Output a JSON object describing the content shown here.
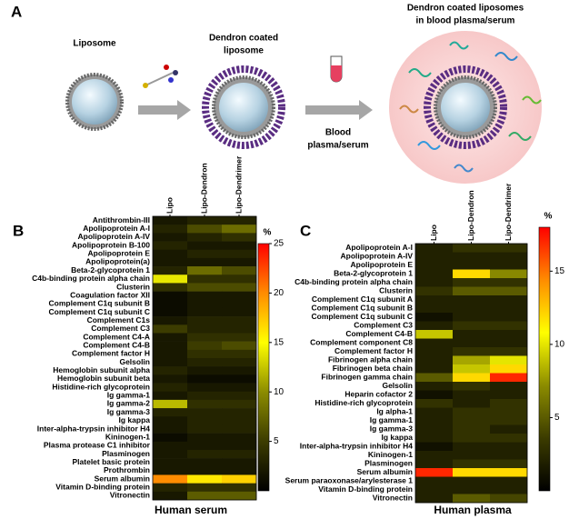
{
  "panel_a": {
    "letter": "A",
    "liposome": "Liposome",
    "coated": [
      "Dendron coated",
      "liposome"
    ],
    "blood": [
      "Blood",
      "plasma/serum"
    ],
    "final": [
      "Dendron coated liposomes",
      "in blood plasma/serum"
    ]
  },
  "chart_data": [
    {
      "type": "heatmap",
      "panel": "B",
      "xlabel": "Human serum",
      "colorbar_label": "%",
      "categories": [
        "Lipo",
        "Lipo-Dendron",
        "Lipo-Dendrimer"
      ],
      "rows": [
        "Antithrombin-III",
        "Apolipoprotein A-I",
        "Apolipoprotein A-IV",
        "Apolipoprotein B-100",
        "Apolipoprotein E",
        "Apolipoprotein(a)",
        "Beta-2-glycoprotein 1",
        "C4b-binding protein alpha chain",
        "Clusterin",
        "Coagulation factor XII",
        "Complement C1q subunit B",
        "Complement C1q subunit C",
        "Complement C1s",
        "Complement C3",
        "Complement C4-A",
        "Complement C4-B",
        "Complement factor H",
        "Gelsolin",
        "Hemoglobin subunit alpha",
        "Hemoglobin subunit beta",
        "Histidine-rich glycoprotein",
        "Ig gamma-1",
        "Ig gamma-2",
        "Ig gamma-3",
        "Ig kappa",
        "Inter-alpha-trypsin inhibitor H4",
        "Kininogen-1",
        "Plasma protease C1 inhibitor",
        "Plasminogen",
        "Platelet basic protein",
        "Prothrombin",
        "Serum albumin",
        "Vitamin D-binding protein",
        "Vitronectin"
      ],
      "values": [
        [
          2,
          3,
          3
        ],
        [
          3,
          6,
          8
        ],
        [
          2,
          3,
          4
        ],
        [
          3,
          2,
          2
        ],
        [
          2,
          3,
          3
        ],
        [
          2,
          2,
          2
        ],
        [
          3,
          8,
          6
        ],
        [
          14,
          4,
          4
        ],
        [
          4,
          6,
          6
        ],
        [
          1,
          2,
          2
        ],
        [
          1,
          2,
          2
        ],
        [
          1,
          2,
          2
        ],
        [
          2,
          3,
          3
        ],
        [
          5,
          3,
          3
        ],
        [
          2,
          4,
          4
        ],
        [
          2,
          5,
          6
        ],
        [
          2,
          4,
          4
        ],
        [
          2,
          3,
          3
        ],
        [
          3,
          2,
          2
        ],
        [
          2,
          1,
          1
        ],
        [
          3,
          2,
          2
        ],
        [
          2,
          3,
          3
        ],
        [
          12,
          4,
          4
        ],
        [
          3,
          3,
          3
        ],
        [
          2,
          3,
          3
        ],
        [
          2,
          3,
          3
        ],
        [
          1,
          2,
          2
        ],
        [
          2,
          2,
          2
        ],
        [
          2,
          3,
          3
        ],
        [
          2,
          2,
          2
        ],
        [
          2,
          2,
          2
        ],
        [
          20,
          16,
          17
        ],
        [
          3,
          4,
          4
        ],
        [
          2,
          7,
          7
        ]
      ],
      "zlim": [
        0,
        25
      ],
      "zticks": [
        5,
        10,
        15,
        20,
        25
      ],
      "colormap": [
        "#000000",
        "#3c3c00",
        "#8c8c00",
        "#ffff00",
        "#ff8c00",
        "#ff0000"
      ]
    },
    {
      "type": "heatmap",
      "panel": "C",
      "xlabel": "Human plasma",
      "colorbar_label": "%",
      "categories": [
        "Lipo",
        "Lipo-Dendron",
        "Lipo-Dendrimer"
      ],
      "rows": [
        "Apolipoprotein A-I",
        "Apolipoprotein A-IV",
        "Apolipoprotein E",
        "Beta-2-glycoprotein 1",
        "C4b-binding protein alpha chain",
        "Clusterin",
        "Complement C1q subunit A",
        "Complement C1q subunit B",
        "Complement C1q subunit C",
        "Complement C3",
        "Complement C4-B",
        "Complement component C8",
        "Complement factor H",
        "Fibrinogen alpha chain",
        "Fibrinogen beta chain",
        "Fibrinogen gamma chain",
        "Gelsolin",
        "Heparin cofactor 2",
        "Histidine-rich glycoprotein",
        "Ig alpha-1",
        "Ig gamma-1",
        "Ig gamma-3",
        "Ig kappa",
        "Inter-alpha-trypsin inhibitor H4",
        "Kininogen-1",
        "Plasminogen",
        "Serum albumin",
        "Serum paraoxonase/arylesterase 1",
        "Vitamin D-binding protein",
        "Vitronectin"
      ],
      "values": [
        [
          2,
          3,
          3
        ],
        [
          2,
          2,
          2
        ],
        [
          2,
          2,
          2
        ],
        [
          2,
          12,
          7
        ],
        [
          2,
          3,
          3
        ],
        [
          3,
          5,
          5
        ],
        [
          2,
          2,
          2
        ],
        [
          2,
          2,
          2
        ],
        [
          1,
          2,
          2
        ],
        [
          2,
          3,
          3
        ],
        [
          9,
          2,
          2
        ],
        [
          2,
          2,
          2
        ],
        [
          2,
          3,
          3
        ],
        [
          2,
          8,
          10
        ],
        [
          2,
          9,
          12
        ],
        [
          5,
          12,
          17
        ],
        [
          2,
          3,
          2
        ],
        [
          1,
          2,
          2
        ],
        [
          3,
          2,
          3
        ],
        [
          2,
          3,
          3
        ],
        [
          2,
          3,
          3
        ],
        [
          2,
          3,
          2
        ],
        [
          2,
          3,
          3
        ],
        [
          1,
          2,
          2
        ],
        [
          2,
          2,
          2
        ],
        [
          2,
          3,
          3
        ],
        [
          17,
          12,
          12
        ],
        [
          2,
          2,
          2
        ],
        [
          2,
          2,
          2
        ],
        [
          2,
          5,
          4
        ]
      ],
      "zlim": [
        0,
        18
      ],
      "zticks": [
        5,
        10,
        15
      ],
      "colormap": [
        "#000000",
        "#3c3c00",
        "#8c8c00",
        "#ffff00",
        "#ff8c00",
        "#ff0000"
      ]
    }
  ]
}
